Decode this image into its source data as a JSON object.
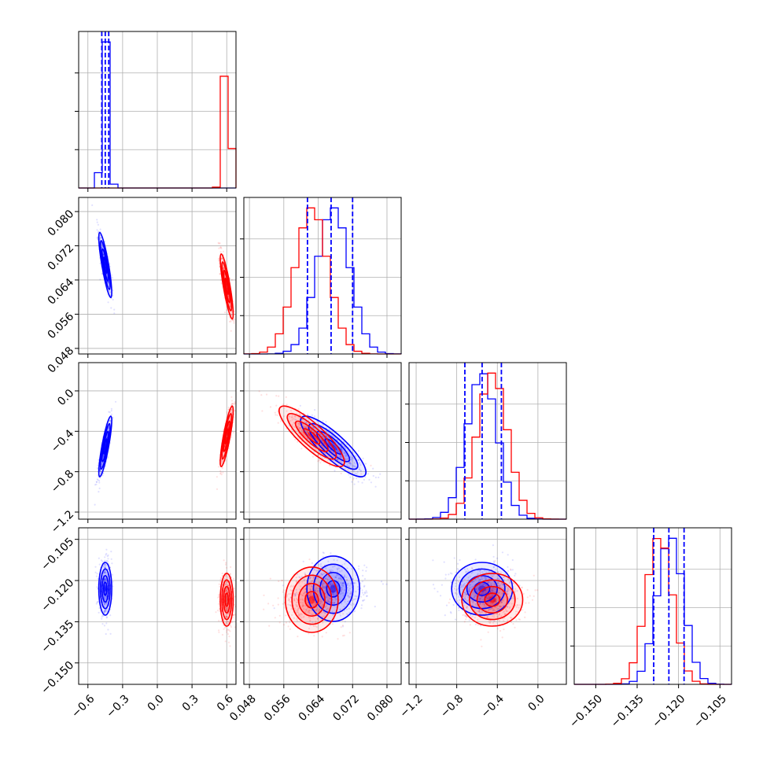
{
  "colors": {
    "series_a": "#0000ff",
    "series_b": "#ff0000",
    "quantile": "#0000ff",
    "grid": "#b0b0b0"
  },
  "chart_data": {
    "type": "corner",
    "parameters": [
      {
        "range": [
          -0.68,
          0.68
        ],
        "ticks": [
          -0.6,
          -0.3,
          0.0,
          0.3,
          0.6
        ],
        "labels": [
          "−0.6",
          "−0.3",
          "0.0",
          "0.3",
          "0.6"
        ]
      },
      {
        "range": [
          0.0467,
          0.0833
        ],
        "ticks": [
          0.048,
          0.056,
          0.064,
          0.072,
          0.08
        ],
        "labels": [
          "0.048",
          "0.056",
          "0.064",
          "0.072",
          "0.080"
        ]
      },
      {
        "range": [
          -1.27,
          0.28
        ],
        "ticks": [
          -1.2,
          -0.8,
          -0.4,
          0.0
        ],
        "labels": [
          "−1.2",
          "−0.8",
          "−0.4",
          "0.0"
        ]
      },
      {
        "range": [
          -0.1578,
          -0.1008
        ],
        "ticks": [
          -0.15,
          -0.135,
          -0.12,
          -0.105
        ],
        "labels": [
          "−0.150",
          "−0.135",
          "−0.120",
          "−0.105"
        ]
      }
    ],
    "series": [
      {
        "color": "#0000ff",
        "mean": [
          -0.45,
          0.0675,
          -0.55,
          -0.123
        ],
        "sd": [
          0.028,
          0.0038,
          0.15,
          0.0048
        ],
        "corr": [
          [
            0,
            1,
            -0.85
          ],
          [
            0,
            2,
            0.85
          ],
          [
            1,
            2,
            -0.85
          ]
        ]
      },
      {
        "color": "#ff0000",
        "mean": [
          0.6,
          0.0625,
          -0.45,
          -0.127
        ],
        "sd": [
          0.028,
          0.0038,
          0.15,
          0.0048
        ],
        "corr": [
          [
            0,
            1,
            -0.85
          ],
          [
            0,
            2,
            0.85
          ],
          [
            1,
            2,
            -0.85
          ]
        ]
      }
    ],
    "quantiles": [
      [
        -0.48,
        -0.45,
        -0.42
      ],
      [
        0.0615,
        0.067,
        0.072
      ],
      [
        -0.72,
        -0.55,
        -0.36
      ],
      [
        -0.129,
        -0.1235,
        -0.118
      ]
    ],
    "contour_levels_sigma": [
      0.5,
      1.0,
      1.5,
      2.0
    ],
    "grid": true
  }
}
